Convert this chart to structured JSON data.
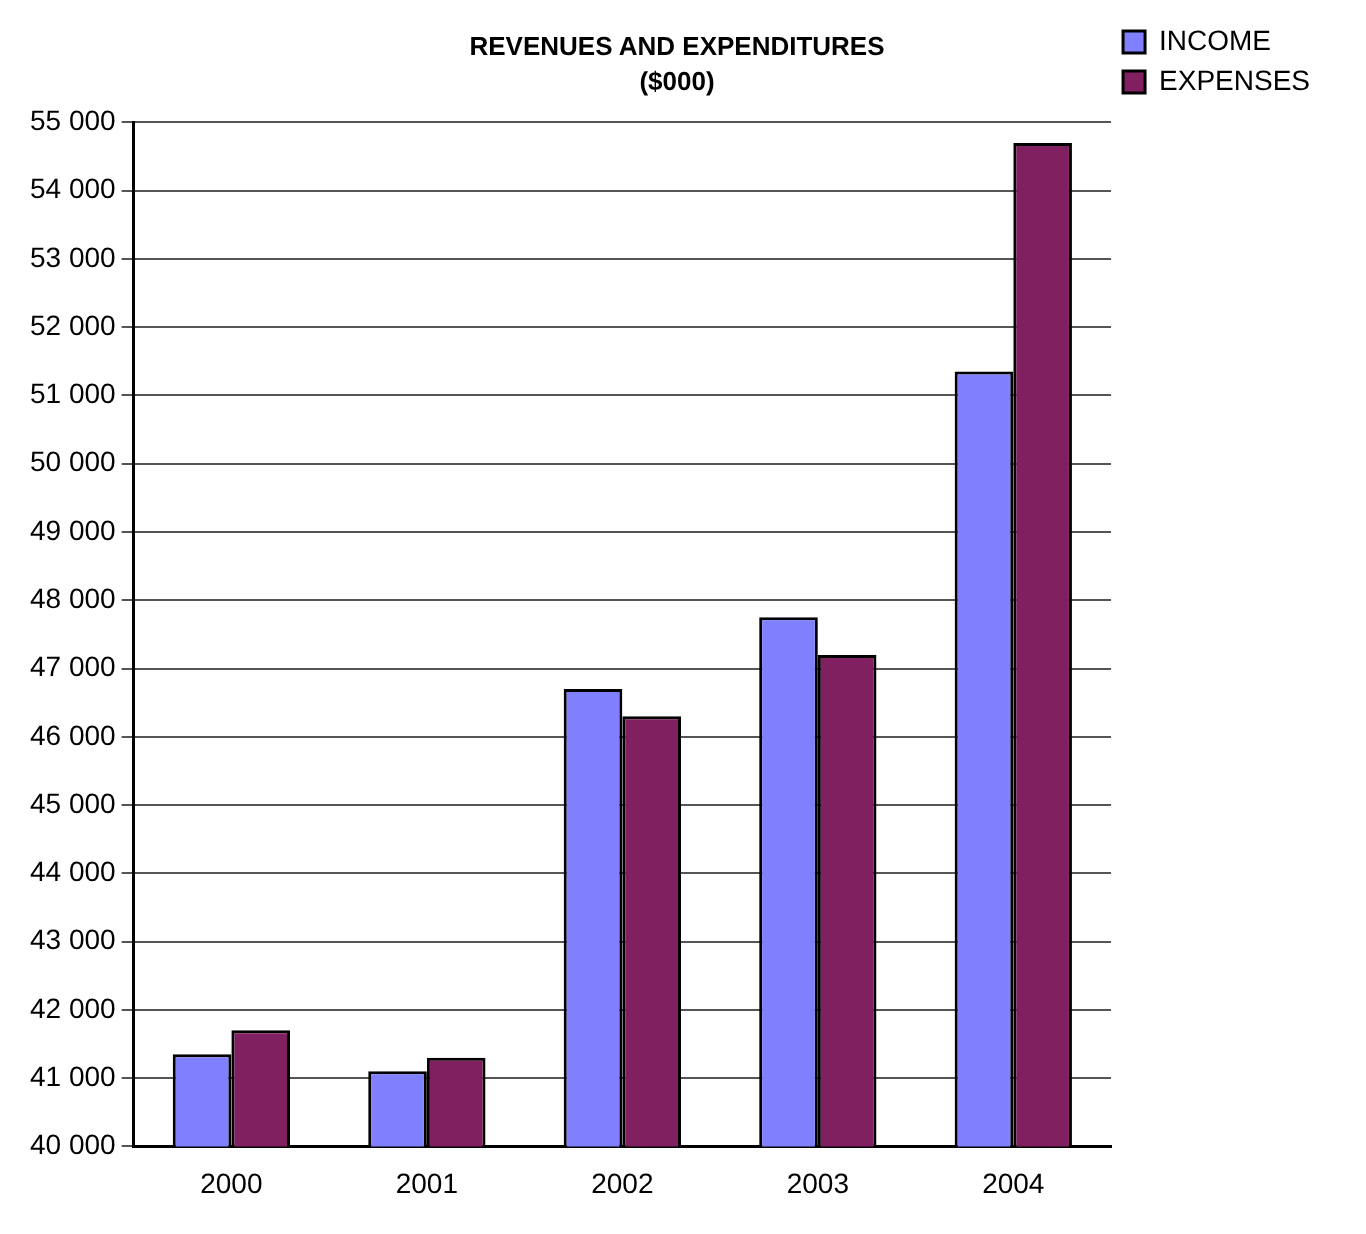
{
  "chart_data": {
    "type": "bar",
    "title": "REVENUES AND EXPENDITURES",
    "subtitle": "($000)",
    "categories": [
      "2000",
      "2001",
      "2002",
      "2003",
      "2004"
    ],
    "series": [
      {
        "name": "INCOME",
        "color": "#8080ff",
        "values": [
          41350,
          41100,
          46700,
          47750,
          51350
        ]
      },
      {
        "name": "EXPENSES",
        "color": "#802060",
        "values": [
          41700,
          41300,
          46300,
          47200,
          54700
        ]
      }
    ],
    "ylim": [
      40000,
      55000
    ],
    "yticks": [
      {
        "value": 40000,
        "label": "40 000"
      },
      {
        "value": 41000,
        "label": "41 000"
      },
      {
        "value": 42000,
        "label": "42 000"
      },
      {
        "value": 43000,
        "label": "43 000"
      },
      {
        "value": 44000,
        "label": "44 000"
      },
      {
        "value": 45000,
        "label": "45 000"
      },
      {
        "value": 46000,
        "label": "46 000"
      },
      {
        "value": 47000,
        "label": "47 000"
      },
      {
        "value": 48000,
        "label": "48 000"
      },
      {
        "value": 49000,
        "label": "49 000"
      },
      {
        "value": 50000,
        "label": "50 000"
      },
      {
        "value": 51000,
        "label": "51 000"
      },
      {
        "value": 52000,
        "label": "52 000"
      },
      {
        "value": 53000,
        "label": "53 000"
      },
      {
        "value": 54000,
        "label": "54 000"
      },
      {
        "value": 55000,
        "label": "55 000"
      }
    ],
    "grid": "y",
    "legend": "right"
  }
}
